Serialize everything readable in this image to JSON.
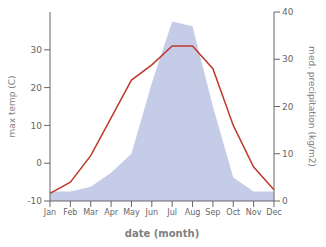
{
  "chart_data": {
    "type": "line",
    "categories": [
      "Jan",
      "Feb",
      "Mar",
      "Apr",
      "May",
      "Jun",
      "Jul",
      "Aug",
      "Sep",
      "Oct",
      "Nov",
      "Dec"
    ],
    "series": [
      {
        "type": "area",
        "axis": "y2",
        "color": "#c5cce8",
        "values": [
          2,
          2,
          3,
          6,
          10,
          25,
          38,
          37,
          20,
          5,
          2,
          2
        ]
      },
      {
        "type": "line",
        "color": "#c0392b",
        "values": [
          -8,
          -5,
          2,
          12,
          22,
          26,
          31,
          31,
          25,
          10,
          -1,
          -7
        ]
      }
    ],
    "xlabel": "date (month)",
    "ylabel": "max temp (C)",
    "y2label": "med. precipitation (kg/m2)",
    "ylim": [
      -10,
      40
    ],
    "yticks": [
      -10,
      0,
      10,
      20,
      30
    ],
    "y2lim": [
      0,
      40
    ],
    "y2ticks": [
      0,
      10,
      20,
      30,
      40
    ],
    "grid": false
  }
}
